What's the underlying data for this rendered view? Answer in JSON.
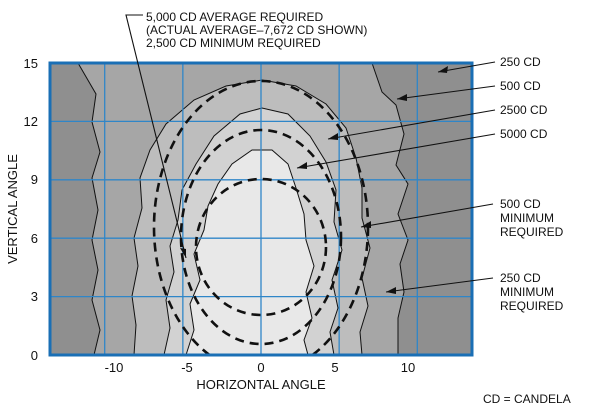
{
  "colors": {
    "frame": "#1a6fb5",
    "grid": "#2f86c8",
    "zone_250": "#8f8f8f",
    "zone_500": "#a6a6a6",
    "zone_2500": "#bdbdbd",
    "zone_5000": "#d2d2d2",
    "zone_core": "#e8e8e8",
    "contour_line": "#111111",
    "dashed_requirement": "#111111"
  },
  "axes": {
    "x_label": "HORIZONTAL ANGLE",
    "y_label": "VERTICAL ANGLE",
    "x_ticks": [
      "-10",
      "-5",
      "0",
      "5",
      "10"
    ],
    "y_ticks": [
      "0",
      "3",
      "6",
      "9",
      "12",
      "15"
    ],
    "x_range": [
      -13.5,
      13.5
    ],
    "y_range": [
      0,
      15
    ]
  },
  "top_annotation": {
    "line1": "5,000 CD AVERAGE REQUIRED",
    "line2": "(ACTUAL AVERAGE–7,672 CD SHOWN)",
    "line3": "2,500 CD MINIMUM REQUIRED"
  },
  "contour_labels": {
    "c250": "250 CD",
    "c500": "500 CD",
    "c2500": "2500 CD",
    "c5000": "5000 CD"
  },
  "requirement_labels": {
    "r500": [
      "500 CD",
      "MINIMUM",
      "REQUIRED"
    ],
    "r250": [
      "250 CD",
      "MINIMUM",
      "REQUIRED"
    ]
  },
  "footnote": "CD = CANDELA"
}
